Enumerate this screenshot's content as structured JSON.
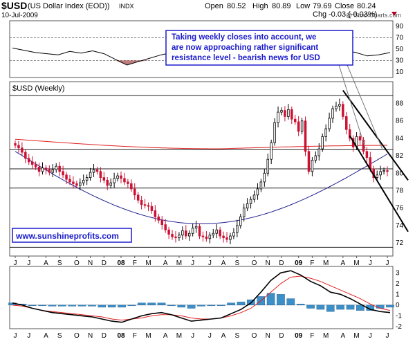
{
  "header": {
    "symbol": "$USD",
    "name": "(US Dollar Index (EOD))",
    "exchange": "INDX",
    "date": "10-Jul-2009",
    "open_label": "Open",
    "open": "80.52",
    "high_label": "High",
    "high": "80.89",
    "low_label": "Low",
    "low": "79.69",
    "close_label": "Close",
    "close": "80.24",
    "chg_label": "Chg",
    "chg": "-0.03 (-0.03%)",
    "watermark": "@ StockCharts.com"
  },
  "annotation": {
    "lines": [
      "Taking weekly closes into account, we",
      "are now approaching rather significant",
      "resistance level - bearish news for USD"
    ]
  },
  "website": "www.sunshineprofits.com",
  "colors": {
    "up": "#000000",
    "down": "#cc1133",
    "ma_long": "#e02020",
    "ma_short": "#202090",
    "annotation_text": "#1a1acc",
    "annotation_border": "#1a1acc",
    "macd_hist": "#3d8fc8",
    "rsi_fill_over": "#1a3a9a",
    "rsi_fill_under": "#b05a5a"
  },
  "chart_data": [
    {
      "type": "line",
      "panel": "RSI",
      "y_ticks": [
        10,
        30,
        50,
        70,
        90
      ],
      "ylim": [
        0,
        100
      ],
      "levels": [
        30,
        70
      ],
      "x": [
        0,
        4,
        8,
        12,
        16,
        20,
        24,
        28,
        32,
        36,
        40,
        44,
        48,
        52,
        56,
        60,
        64,
        68,
        72,
        76,
        80,
        84,
        88,
        92,
        96,
        100,
        104,
        108,
        112,
        116,
        120,
        124,
        128,
        132
      ],
      "values": [
        52,
        48,
        44,
        42,
        40,
        46,
        43,
        47,
        42,
        32,
        22,
        28,
        34,
        40,
        44,
        48,
        45,
        36,
        40,
        46,
        50,
        62,
        72,
        74,
        65,
        55,
        50,
        60,
        55,
        48,
        44,
        38,
        40,
        44
      ]
    },
    {
      "type": "candlestick",
      "panel": "price",
      "title": "$USD (Weekly)",
      "y_ticks": [
        72,
        74,
        76,
        78,
        80,
        82,
        84,
        86,
        88
      ],
      "ylim": [
        70.5,
        90.5
      ],
      "x_labels": [
        "J",
        "J",
        "A",
        "S",
        "O",
        "N",
        "D",
        "08",
        "F",
        "M",
        "A",
        "M",
        "J",
        "J",
        "A",
        "S",
        "O",
        "N",
        "D",
        "09",
        "F",
        "M",
        "A",
        "M",
        "J",
        "J"
      ],
      "x_label_week": [
        0,
        4,
        9,
        13,
        18,
        22,
        26,
        31,
        35,
        39,
        44,
        48,
        52,
        57,
        61,
        65,
        70,
        74,
        78,
        83,
        87,
        91,
        96,
        100,
        104,
        109
      ],
      "weeks": 110,
      "closes": [
        83.2,
        82.9,
        82.4,
        81.7,
        81.3,
        81.0,
        80.7,
        80.2,
        80.6,
        80.4,
        80.1,
        80.4,
        80.8,
        80.2,
        79.8,
        79.3,
        79.0,
        78.8,
        78.6,
        78.9,
        79.2,
        79.5,
        80.1,
        80.4,
        80.2,
        79.5,
        79.2,
        78.6,
        78.9,
        79.4,
        79.7,
        79.4,
        79.0,
        78.8,
        78.2,
        77.5,
        76.9,
        76.4,
        76.3,
        76.2,
        75.7,
        75.0,
        74.6,
        74.1,
        73.5,
        73.0,
        72.7,
        72.6,
        72.9,
        73.4,
        72.8,
        73.1,
        73.7,
        73.9,
        72.8,
        72.7,
        72.5,
        72.9,
        73.1,
        73.5,
        72.8,
        72.6,
        72.4,
        72.8,
        73.2,
        74.0,
        75.0,
        76.0,
        76.5,
        77.0,
        77.5,
        78.2,
        79.0,
        80.0,
        81.6,
        83.5,
        85.8,
        87.0,
        87.2,
        86.5,
        87.3,
        86.2,
        85.9,
        84.8,
        86.0,
        82.5,
        80.2,
        81.5,
        82.0,
        82.8,
        84.2,
        85.1,
        86.3,
        87.4,
        87.7,
        87.9,
        86.5,
        85.0,
        84.0,
        83.0,
        84.2,
        83.8,
        82.5,
        81.8,
        80.5,
        79.5,
        79.8,
        80.2,
        80.3,
        80.2
      ],
      "ma_long": {
        "start": 83.9,
        "mid": 82.8,
        "end": 83.2
      },
      "ma_short": {
        "start": 82.5,
        "mid": 74.2,
        "end": 82.2
      },
      "horizontal_lines": [
        88.9,
        82.7,
        80.5,
        78.3,
        71.5
      ],
      "channel_upper": {
        "from": [
          96,
          89.5
        ],
        "to": [
          109,
          81.0
        ]
      },
      "channel_lower": {
        "from": [
          98,
          84.3
        ],
        "to": [
          109,
          75.5
        ]
      },
      "annotation_pointers": [
        [
          102.5,
          82.9
        ],
        [
          107.5,
          82.8
        ]
      ]
    },
    {
      "type": "bar",
      "panel": "MACD",
      "y_ticks": [
        -2,
        -1,
        0,
        1,
        2,
        3
      ],
      "ylim": [
        -2.2,
        3.6
      ],
      "x_labels": [
        "J",
        "J",
        "A",
        "S",
        "O",
        "N",
        "D",
        "08",
        "F",
        "M",
        "A",
        "M",
        "J",
        "J",
        "A",
        "S",
        "O",
        "N",
        "D",
        "09",
        "F",
        "M",
        "A",
        "M",
        "J",
        "J"
      ],
      "macd": [
        0.2,
        0.0,
        -0.3,
        -0.5,
        -0.7,
        -0.8,
        -0.9,
        -1.0,
        -1.1,
        -1.3,
        -1.5,
        -1.6,
        -1.3,
        -1.0,
        -0.8,
        -0.7,
        -0.9,
        -1.2,
        -1.5,
        -1.4,
        -1.3,
        -1.2,
        -0.8,
        -0.4,
        0.2,
        1.2,
        2.3,
        3.0,
        3.2,
        2.8,
        2.2,
        1.8,
        1.2,
        1.0,
        0.6,
        0.1,
        -0.4,
        -0.6,
        -0.7
      ],
      "signal": [
        0.0,
        -0.1,
        -0.3,
        -0.5,
        -0.6,
        -0.7,
        -0.8,
        -0.9,
        -1.0,
        -1.1,
        -1.3,
        -1.4,
        -1.3,
        -1.2,
        -1.0,
        -0.9,
        -0.9,
        -1.0,
        -1.2,
        -1.3,
        -1.3,
        -1.2,
        -1.0,
        -0.7,
        -0.3,
        0.4,
        1.2,
        2.0,
        2.6,
        2.7,
        2.5,
        2.2,
        1.8,
        1.4,
        1.0,
        0.6,
        0.1,
        -0.3,
        -0.5
      ],
      "histogram": [
        0.2,
        0.1,
        0.0,
        0.0,
        -0.1,
        -0.1,
        -0.1,
        -0.1,
        -0.1,
        -0.2,
        -0.2,
        -0.2,
        0.0,
        0.2,
        0.2,
        0.2,
        0.0,
        -0.2,
        -0.3,
        -0.1,
        0.0,
        0.0,
        0.2,
        0.3,
        0.5,
        0.8,
        1.1,
        1.0,
        0.6,
        0.1,
        -0.3,
        -0.4,
        -0.6,
        -0.4,
        -0.4,
        -0.5,
        -0.5,
        -0.3,
        -0.2
      ]
    }
  ]
}
